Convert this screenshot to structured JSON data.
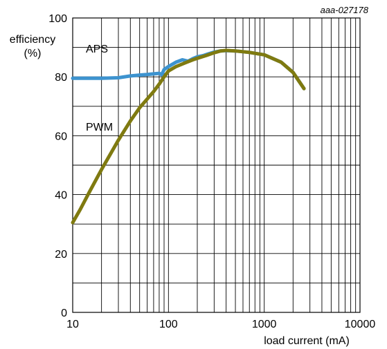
{
  "chart_data": {
    "type": "line",
    "figure_id": "aaa-027178",
    "ylabel_lines": [
      "efficiency",
      "(%)"
    ],
    "xlabel": "load current (mA)",
    "x_scale": "log",
    "xlim": [
      10,
      10000
    ],
    "ylim": [
      0,
      100
    ],
    "x_ticks": [
      10,
      100,
      1000,
      10000
    ],
    "x_tick_labels": [
      "10",
      "100",
      "1000",
      "10000"
    ],
    "y_ticks": [
      0,
      20,
      40,
      60,
      80,
      100
    ],
    "y_tick_labels": [
      "0",
      "20",
      "40",
      "60",
      "80",
      "100"
    ],
    "grid": true,
    "series": [
      {
        "name": "APS",
        "color": "#3d93cf",
        "x": [
          10,
          15,
          20,
          30,
          40,
          50,
          60,
          70,
          80,
          85,
          90,
          100,
          120,
          140,
          160,
          180,
          200,
          230,
          260,
          300,
          350,
          400,
          500,
          700,
          1000,
          1500,
          2000,
          2600
        ],
        "y": [
          79.5,
          79.5,
          79.5,
          79.7,
          80.3,
          80.6,
          80.8,
          81,
          81.2,
          80.7,
          82.5,
          83.5,
          85,
          85.8,
          85.3,
          86.2,
          86.8,
          87.2,
          87.8,
          88.4,
          88.8,
          88.9,
          88.8,
          88.3,
          87.5,
          85,
          81.5,
          76
        ]
      },
      {
        "name": "PWM",
        "color": "#7f7a10",
        "x": [
          10,
          12,
          15,
          20,
          25,
          30,
          40,
          50,
          60,
          70,
          80,
          90,
          100,
          120,
          150,
          180,
          200,
          250,
          300,
          350,
          400,
          500,
          700,
          1000,
          1500,
          2000,
          2600
        ],
        "y": [
          30.5,
          35,
          41,
          48.5,
          54,
          58.5,
          65,
          69.5,
          72.5,
          75,
          77.5,
          80,
          82,
          83.5,
          84.8,
          85.8,
          86.3,
          87.3,
          88.2,
          88.8,
          89,
          88.8,
          88.3,
          87.5,
          85,
          81.5,
          76
        ]
      }
    ]
  }
}
